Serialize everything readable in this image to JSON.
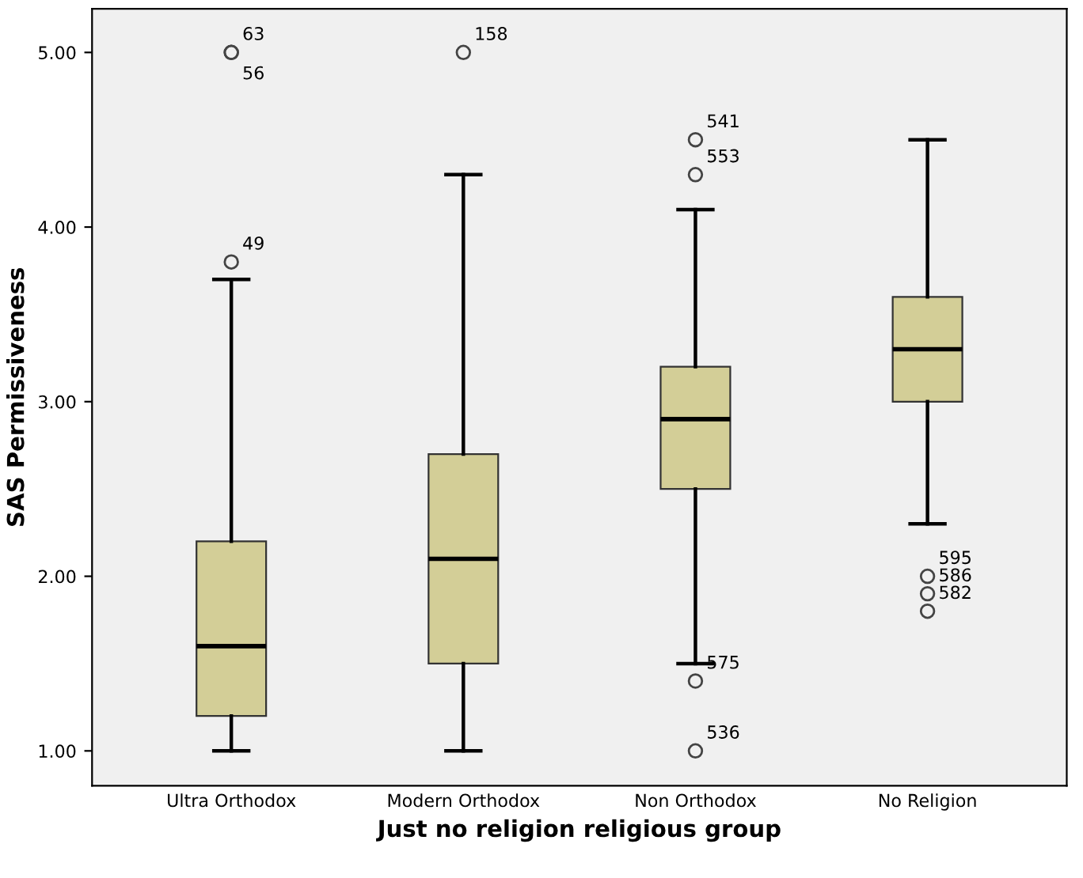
{
  "chart_data": {
    "type": "box",
    "xlabel": "Just no religion religious group",
    "ylabel": "SAS Permissiveness",
    "categories": [
      "Ultra Orthodox",
      "Modern Orthodox",
      "Non Orthodox",
      "No Religion"
    ],
    "boxes": [
      {
        "low": 1.0,
        "q1": 1.2,
        "median": 1.6,
        "q3": 2.2,
        "high": 3.7,
        "outliers": [
          5.0,
          5.0,
          3.8
        ]
      },
      {
        "low": 1.0,
        "q1": 1.5,
        "median": 2.1,
        "q3": 2.7,
        "high": 4.3,
        "outliers": [
          5.0
        ]
      },
      {
        "low": 1.5,
        "q1": 2.5,
        "median": 2.9,
        "q3": 3.2,
        "high": 4.1,
        "outliers": [
          4.5,
          4.3,
          1.4,
          1.0
        ]
      },
      {
        "low": 2.3,
        "q1": 3.0,
        "median": 3.3,
        "q3": 3.6,
        "high": 4.5,
        "outliers": [
          2.0,
          1.9,
          1.8
        ]
      }
    ],
    "color": "#d3ce97",
    "ylim": [
      0.8,
      5.25
    ],
    "yticks": [
      {
        "value": 1,
        "label": "1.00"
      },
      {
        "value": 2,
        "label": "2.00"
      },
      {
        "value": 3,
        "label": "3.00"
      },
      {
        "value": 4,
        "label": "4.00"
      },
      {
        "value": 5,
        "label": "5.00"
      }
    ],
    "grid": false,
    "annotations": [
      "63",
      "56",
      "49",
      "158",
      "541",
      "553",
      "575",
      "536",
      "595",
      "586",
      "582"
    ]
  }
}
